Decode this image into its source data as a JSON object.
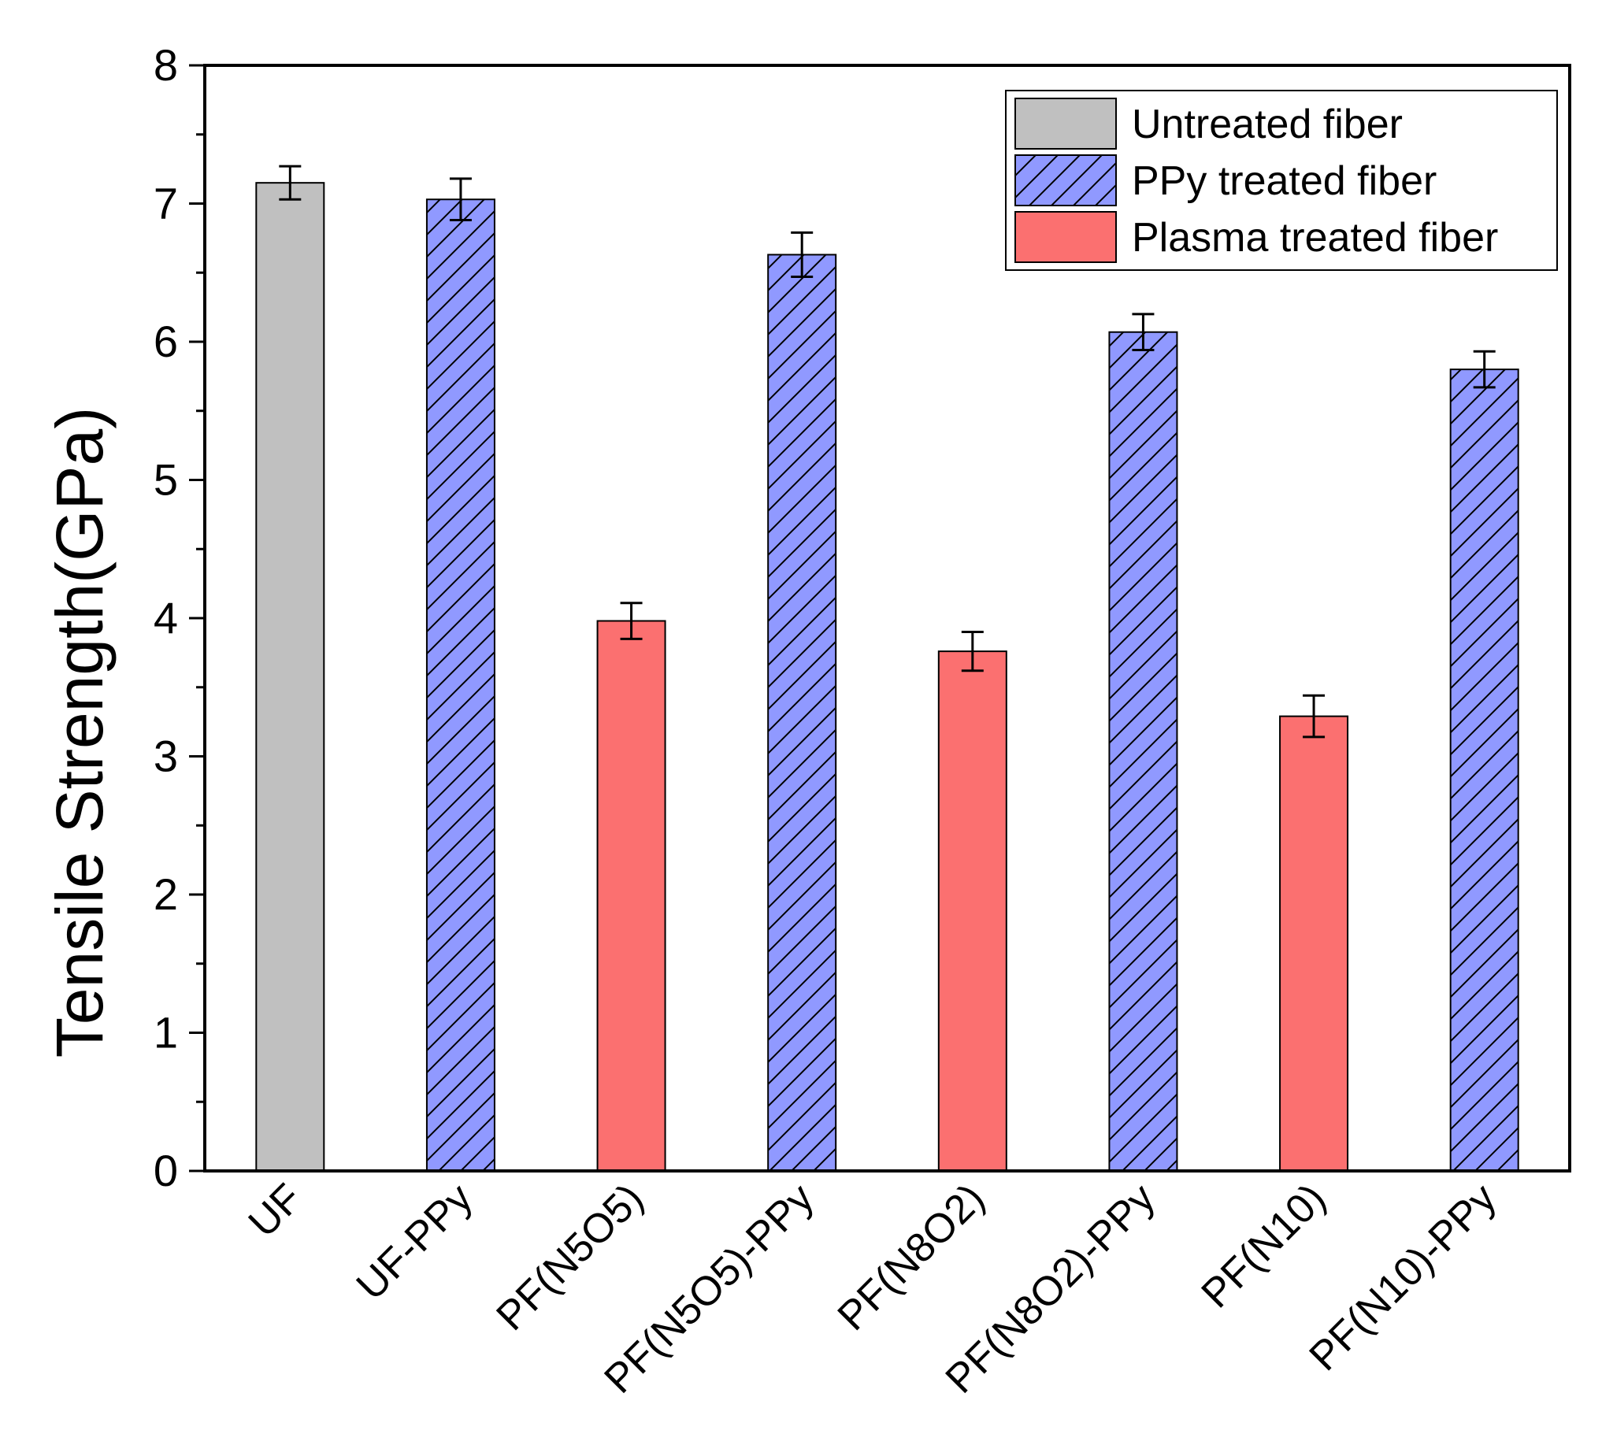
{
  "chart_data": {
    "type": "bar",
    "title": "",
    "xlabel": "",
    "ylabel": "Tensile Strength(GPa)",
    "ylim": [
      0,
      8
    ],
    "yticks": [
      "0",
      "1",
      "2",
      "3",
      "4",
      "5",
      "6",
      "7",
      "8"
    ],
    "grid": false,
    "legend_position": "top-right",
    "categories": [
      "UF",
      "UF-PPy",
      "PF(N5O5)",
      "PF(N5O5)-PPy",
      "PF(N8O2)",
      "PF(N8O2)-PPy",
      "PF(N10)",
      "PF(N10)-PPy"
    ],
    "values": [
      7.15,
      7.03,
      3.98,
      6.63,
      3.76,
      6.07,
      3.29,
      5.8
    ],
    "errors": [
      0.12,
      0.15,
      0.13,
      0.16,
      0.14,
      0.13,
      0.15,
      0.13
    ],
    "groups": [
      "untreated",
      "ppy",
      "plasma",
      "ppy",
      "plasma",
      "ppy",
      "plasma",
      "ppy"
    ],
    "series": [
      {
        "key": "untreated",
        "name": "Untreated fiber",
        "color": "#c0c0c0",
        "pattern": "solid"
      },
      {
        "key": "ppy",
        "name": "PPy treated fiber",
        "color": "#9099ff",
        "pattern": "hatch"
      },
      {
        "key": "plasma",
        "name": "Plasma treated fiber",
        "color": "#fb7070",
        "pattern": "solid"
      }
    ]
  }
}
